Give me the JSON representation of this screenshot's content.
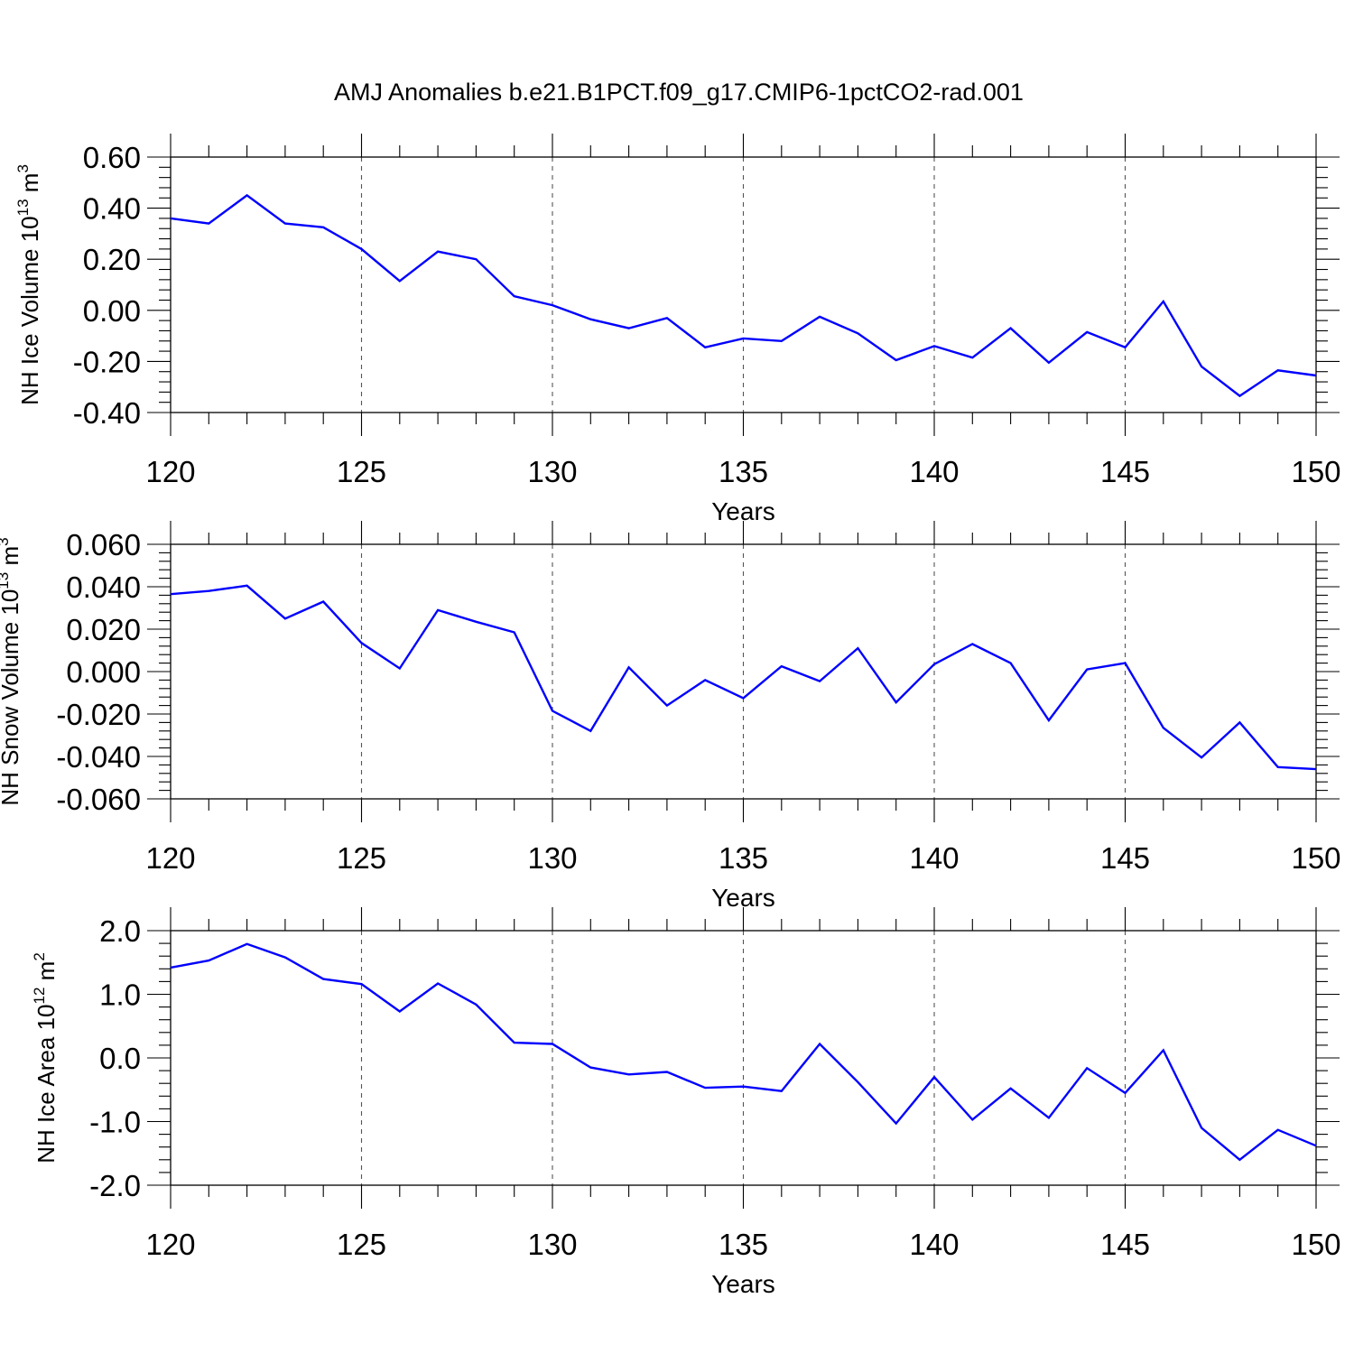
{
  "title": "AMJ Anomalies b.e21.B1PCT.f09_g17.CMIP6-1pctCO2-rad.001",
  "line_color": "#0000ff",
  "chart_data": [
    {
      "type": "line",
      "ylabel": {
        "text": "NH Ice Volume 10",
        "sup": "13",
        "tail": " m",
        "tail_sup": "3"
      },
      "xlabel": "Years",
      "xlim": [
        120,
        150
      ],
      "ylim": [
        -0.4,
        0.6
      ],
      "x_ticks": [
        120,
        125,
        130,
        135,
        140,
        145,
        150
      ],
      "y_ticks": [
        -0.4,
        -0.2,
        0.0,
        0.2,
        0.4,
        0.6
      ],
      "y_tick_labels": [
        "-0.40",
        "-0.20",
        "0.00",
        "0.20",
        "0.40",
        "0.60"
      ],
      "grid": "dashed vertical at major x ticks",
      "x": [
        120,
        121,
        122,
        123,
        124,
        125,
        126,
        127,
        128,
        129,
        130,
        131,
        132,
        133,
        134,
        135,
        136,
        137,
        138,
        139,
        140,
        141,
        142,
        143,
        144,
        145,
        146,
        147,
        148,
        149,
        150
      ],
      "values": [
        0.36,
        0.34,
        0.45,
        0.34,
        0.325,
        0.24,
        0.115,
        0.23,
        0.2,
        0.055,
        0.02,
        -0.035,
        -0.07,
        -0.03,
        -0.145,
        -0.11,
        -0.12,
        -0.025,
        -0.09,
        -0.195,
        -0.14,
        -0.185,
        -0.07,
        -0.205,
        -0.085,
        -0.145,
        0.035,
        -0.22,
        -0.335,
        -0.235,
        -0.255
      ]
    },
    {
      "type": "line",
      "ylabel": {
        "text": "NH Snow Volume 10",
        "sup": "13",
        "tail": " m",
        "tail_sup": "3"
      },
      "xlabel": "Years",
      "xlim": [
        120,
        150
      ],
      "ylim": [
        -0.06,
        0.06
      ],
      "x_ticks": [
        120,
        125,
        130,
        135,
        140,
        145,
        150
      ],
      "y_ticks": [
        -0.06,
        -0.04,
        -0.02,
        0.0,
        0.02,
        0.04,
        0.06
      ],
      "y_tick_labels": [
        "-0.060",
        "-0.040",
        "-0.020",
        "0.000",
        "0.020",
        "0.040",
        "0.060"
      ],
      "grid": "dashed vertical at major x ticks",
      "x": [
        120,
        121,
        122,
        123,
        124,
        125,
        126,
        127,
        128,
        129,
        130,
        131,
        132,
        133,
        134,
        135,
        136,
        137,
        138,
        139,
        140,
        141,
        142,
        143,
        144,
        145,
        146,
        147,
        148,
        149,
        150
      ],
      "values": [
        0.0365,
        0.038,
        0.0405,
        0.025,
        0.033,
        0.0135,
        0.0015,
        0.029,
        0.0235,
        0.0185,
        -0.0185,
        -0.028,
        0.002,
        -0.016,
        -0.004,
        -0.0125,
        0.0025,
        -0.0045,
        0.011,
        -0.0145,
        0.0035,
        0.013,
        0.004,
        -0.023,
        0.001,
        0.004,
        -0.0265,
        -0.0405,
        -0.024,
        -0.045,
        -0.046
      ]
    },
    {
      "type": "line",
      "ylabel": {
        "text": "NH Ice Area 10",
        "sup": "12",
        "tail": " m",
        "tail_sup": "2"
      },
      "xlabel": "Years",
      "xlim": [
        120,
        150
      ],
      "ylim": [
        -2.0,
        2.0
      ],
      "x_ticks": [
        120,
        125,
        130,
        135,
        140,
        145,
        150
      ],
      "y_ticks": [
        -2.0,
        -1.0,
        0.0,
        1.0,
        2.0
      ],
      "y_tick_labels": [
        "-2.0",
        "-1.0",
        "0.0",
        "1.0",
        "2.0"
      ],
      "grid": "dashed vertical at major x ticks",
      "x": [
        120,
        121,
        122,
        123,
        124,
        125,
        126,
        127,
        128,
        129,
        130,
        131,
        132,
        133,
        134,
        135,
        136,
        137,
        138,
        139,
        140,
        141,
        142,
        143,
        144,
        145,
        146,
        147,
        148,
        149,
        150
      ],
      "values": [
        1.42,
        1.53,
        1.79,
        1.58,
        1.24,
        1.16,
        0.73,
        1.17,
        0.84,
        0.24,
        0.22,
        -0.15,
        -0.26,
        -0.22,
        -0.47,
        -0.45,
        -0.52,
        0.22,
        -0.38,
        -1.03,
        -0.3,
        -0.97,
        -0.48,
        -0.94,
        -0.16,
        -0.55,
        0.12,
        -1.1,
        -1.6,
        -1.13,
        -1.38
      ]
    }
  ]
}
